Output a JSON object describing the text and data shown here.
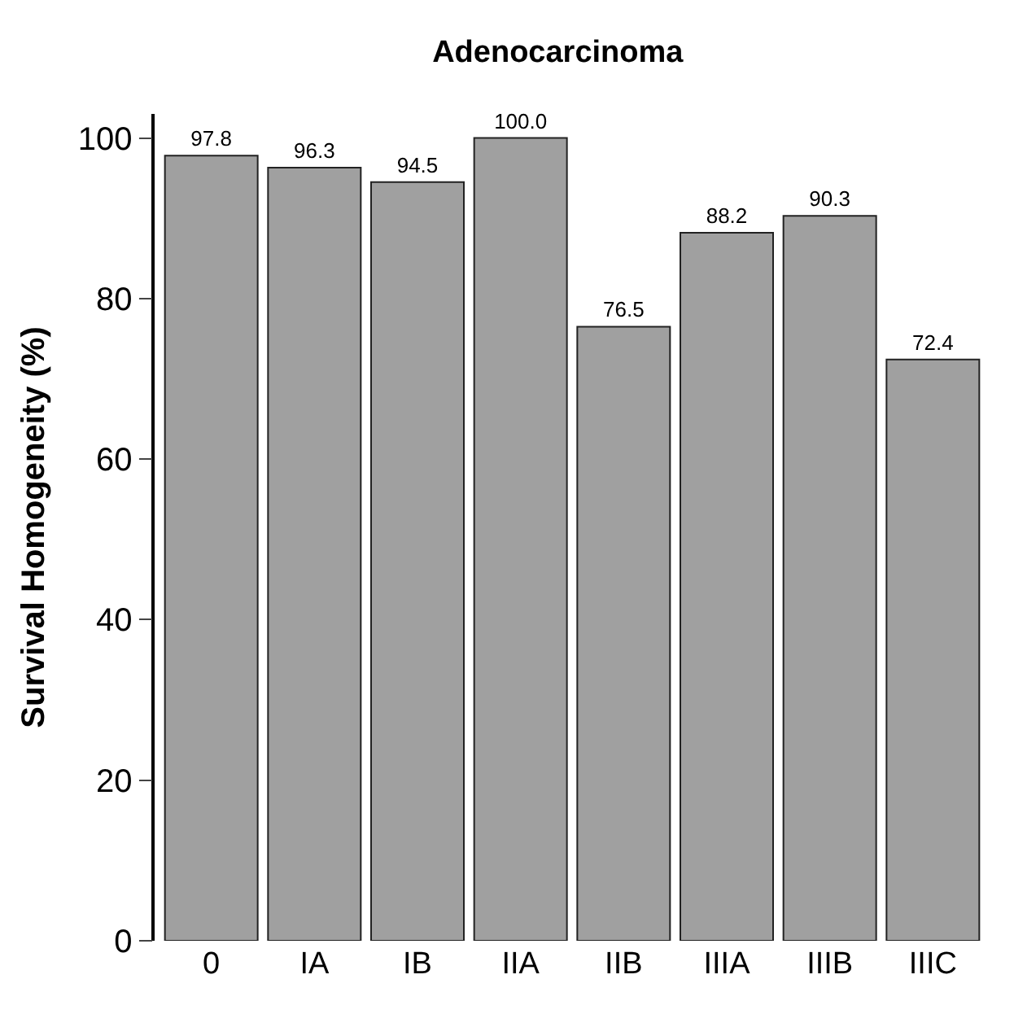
{
  "chart_data": {
    "type": "bar",
    "title": "Adenocarcinoma",
    "ylabel": "Survival Homogeneity (%)",
    "categories": [
      "0",
      "IA",
      "IB",
      "IIA",
      "IIB",
      "IIIA",
      "IIIB",
      "IIIC"
    ],
    "values": [
      97.8,
      96.3,
      94.5,
      100.0,
      76.5,
      88.2,
      90.3,
      72.4
    ],
    "value_labels": [
      "97.8",
      "96.3",
      "94.5",
      "100.0",
      "76.5",
      "88.2",
      "90.3",
      "72.4"
    ],
    "color": "#a0a0a0",
    "ylim": [
      0,
      103
    ],
    "yticks": [
      0,
      20,
      40,
      60,
      80,
      100
    ],
    "legend": false
  }
}
